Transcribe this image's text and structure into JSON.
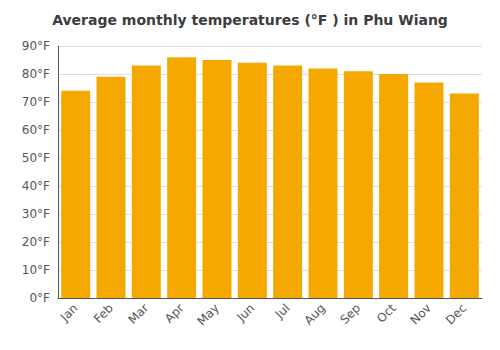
{
  "chart_data": {
    "type": "bar",
    "title": "Average monthly temperatures (°F ) in Phu Wiang",
    "categories": [
      "Jan",
      "Feb",
      "Mar",
      "Apr",
      "May",
      "Jun",
      "Jul",
      "Aug",
      "Sep",
      "Oct",
      "Nov",
      "Dec"
    ],
    "values": [
      74,
      79,
      83,
      86,
      85,
      84,
      83,
      82,
      81,
      80,
      77,
      73
    ],
    "color": "#F5A800",
    "ylim": [
      0,
      90
    ],
    "yticks": [
      {
        "value": 0,
        "label": "0°F"
      },
      {
        "value": 10,
        "label": "10°F"
      },
      {
        "value": 20,
        "label": "20°F"
      },
      {
        "value": 30,
        "label": "30°F"
      },
      {
        "value": 40,
        "label": "40°F"
      },
      {
        "value": 50,
        "label": "50°F"
      },
      {
        "value": 60,
        "label": "60°F"
      },
      {
        "value": 70,
        "label": "70°F"
      },
      {
        "value": 80,
        "label": "80°F"
      },
      {
        "value": 90,
        "label": "90°F"
      }
    ],
    "grid": true
  }
}
